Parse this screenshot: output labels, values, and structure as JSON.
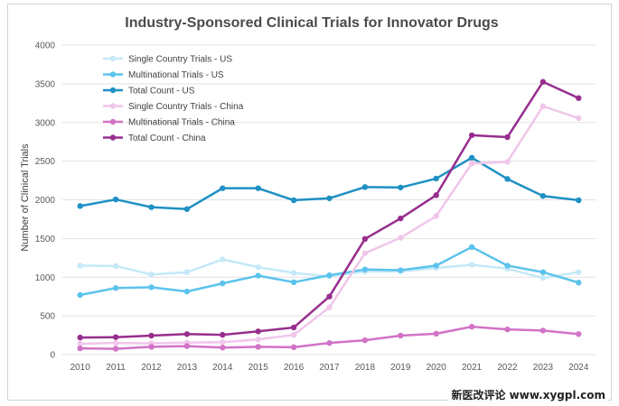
{
  "chart_data": {
    "type": "line",
    "title": "Industry-Sponsored Clinical Trials for Innovator Drugs",
    "xlabel": "",
    "ylabel": "Number of Clinical Trials",
    "ylim": [
      0,
      4000
    ],
    "yticks": [
      0,
      500,
      1000,
      1500,
      2000,
      2500,
      3000,
      3500,
      4000
    ],
    "categories": [
      "2010",
      "2011",
      "2012",
      "2013",
      "2014",
      "2015",
      "2016",
      "2017",
      "2018",
      "2019",
      "2020",
      "2021",
      "2022",
      "2023",
      "2024"
    ],
    "grid": "horizontal",
    "legend_position": "top-left",
    "series": [
      {
        "name": "Single Country Trials - US",
        "color": "#c5e9f8",
        "values": [
          1150,
          1145,
          1035,
          1065,
          1230,
          1130,
          1055,
          1010,
          1075,
          1075,
          1120,
          1160,
          1110,
          990,
          1065
        ]
      },
      {
        "name": "Multinational Trials - US",
        "color": "#5bc3ec",
        "values": [
          770,
          860,
          870,
          815,
          920,
          1020,
          935,
          1025,
          1100,
          1090,
          1150,
          1390,
          1150,
          1065,
          930
        ]
      },
      {
        "name": "Total Count - US",
        "color": "#1f90c4",
        "values": [
          1920,
          2005,
          1905,
          1880,
          2150,
          2150,
          1995,
          2020,
          2165,
          2160,
          2275,
          2545,
          2270,
          2050,
          1995
        ]
      },
      {
        "name": "Single Country Trials - China",
        "color": "#f0c6ea",
        "values": [
          140,
          150,
          145,
          155,
          160,
          195,
          255,
          610,
          1310,
          1510,
          1790,
          2470,
          2490,
          3210,
          3055
        ]
      },
      {
        "name": "Multinational Trials - China",
        "color": "#d173c6",
        "values": [
          80,
          75,
          100,
          110,
          90,
          100,
          95,
          150,
          185,
          245,
          270,
          360,
          325,
          310,
          265
        ]
      },
      {
        "name": "Total Count - China",
        "color": "#972e8e",
        "values": [
          220,
          225,
          245,
          265,
          255,
          300,
          350,
          750,
          1495,
          1760,
          2060,
          2835,
          2810,
          3525,
          3315
        ]
      }
    ]
  },
  "watermark": "新医改评论 www.xygpl.com"
}
